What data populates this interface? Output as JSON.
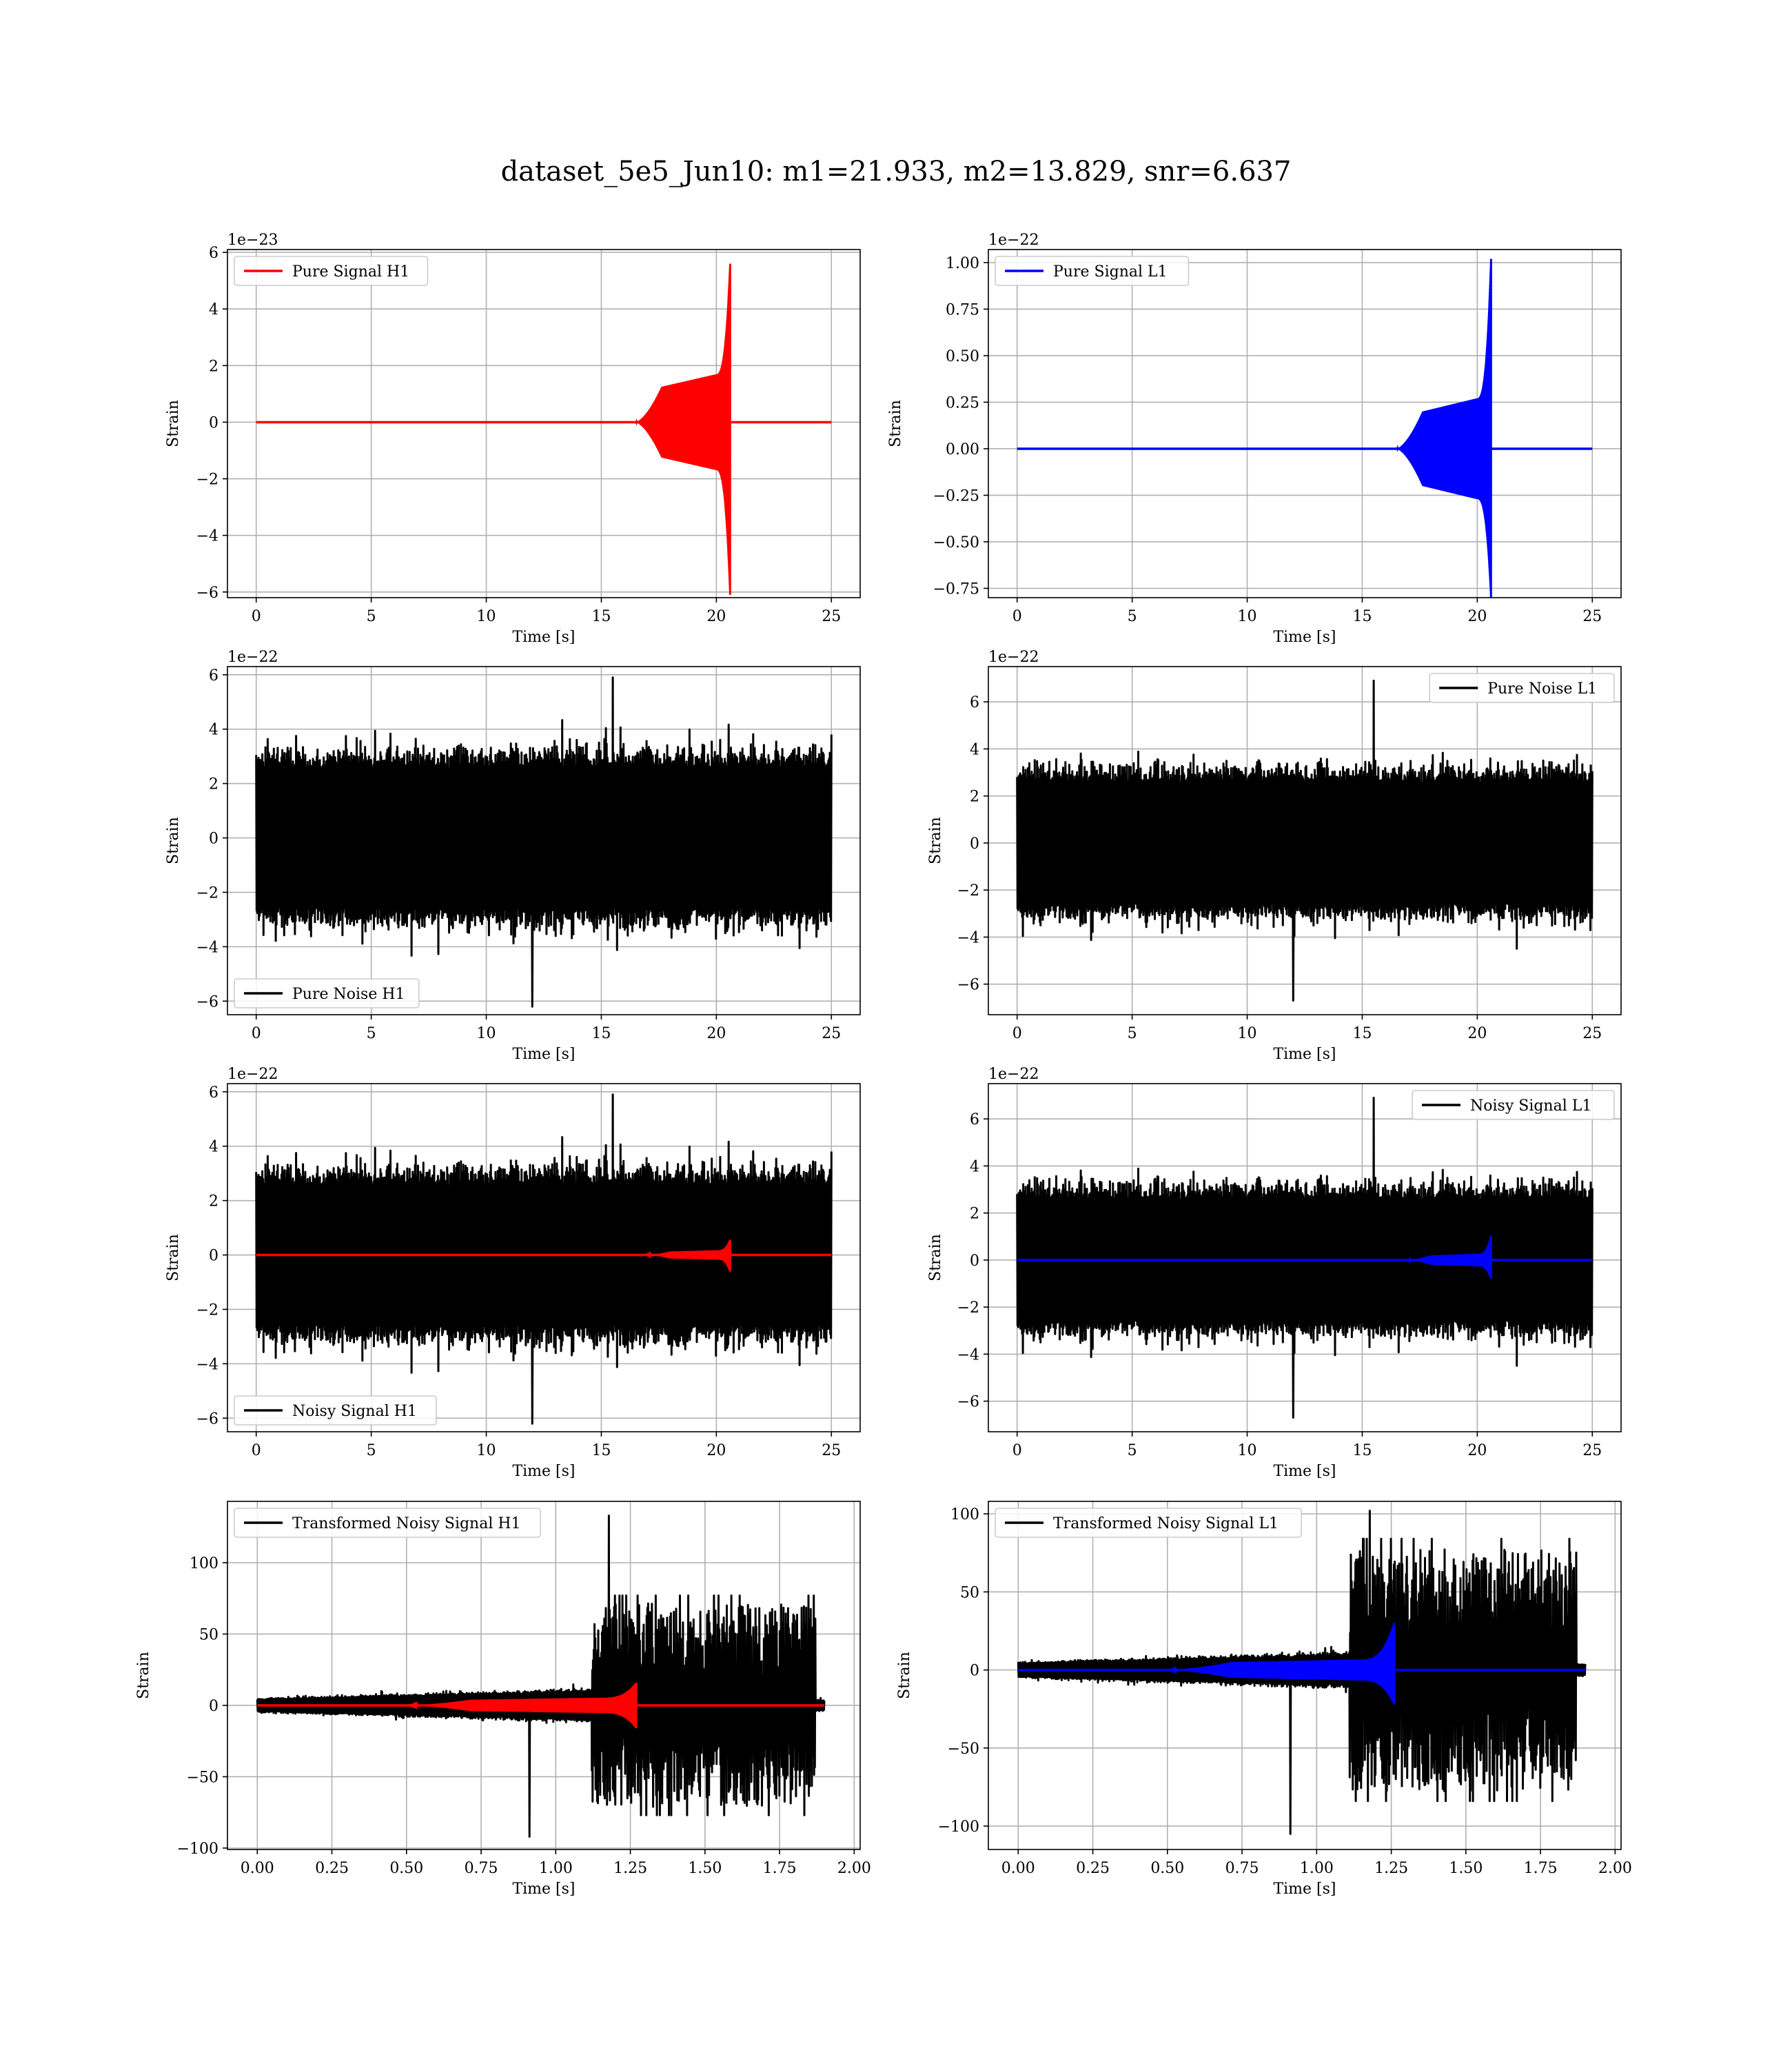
{
  "figure_title": "dataset_5e5_Jun10: m1=21.933, m2=13.829, snr=6.637",
  "chart_data": [
    {
      "id": "pure-signal-h1",
      "type": "line",
      "title": "",
      "xlabel": "Time [s]",
      "ylabel": "Strain",
      "offset_text": "1e−23",
      "xlim": [
        -1.25,
        26.25
      ],
      "ylim": [
        -6.2,
        6.1
      ],
      "xticks": [
        0,
        5,
        10,
        15,
        20,
        25
      ],
      "xtick_labels": [
        "0",
        "5",
        "10",
        "15",
        "20",
        "25"
      ],
      "yticks": [
        -6,
        -4,
        -2,
        0,
        2,
        4,
        6
      ],
      "ytick_labels": [
        "−6",
        "−4",
        "−2",
        "0",
        "2",
        "4",
        "6"
      ],
      "grid": true,
      "legend": "upper left",
      "series": [
        {
          "name": "Pure Signal H1",
          "color": "#ff0000",
          "kind": "chirp",
          "onset": 16.5,
          "merger": 20.6,
          "end": 25,
          "plateau": 1.25,
          "peak_up": 5.6,
          "peak_down": -6.1
        }
      ]
    },
    {
      "id": "pure-signal-l1",
      "type": "line",
      "title": "",
      "xlabel": "Time [s]",
      "ylabel": "Strain",
      "offset_text": "1e−22",
      "xlim": [
        -1.25,
        26.25
      ],
      "ylim": [
        -0.8,
        1.07
      ],
      "xticks": [
        0,
        5,
        10,
        15,
        20,
        25
      ],
      "xtick_labels": [
        "0",
        "5",
        "10",
        "15",
        "20",
        "25"
      ],
      "yticks": [
        -0.75,
        -0.5,
        -0.25,
        0,
        0.25,
        0.5,
        0.75,
        1.0
      ],
      "ytick_labels": [
        "−0.75",
        "−0.50",
        "−0.25",
        "0.00",
        "0.25",
        "0.50",
        "0.75",
        "1.00"
      ],
      "grid": true,
      "legend": "upper left",
      "series": [
        {
          "name": "Pure Signal L1",
          "color": "#0000ff",
          "kind": "chirp",
          "onset": 16.5,
          "merger": 20.6,
          "end": 25,
          "plateau": 0.2,
          "peak_up": 1.02,
          "peak_down": -0.8
        }
      ]
    },
    {
      "id": "pure-noise-h1",
      "type": "line",
      "title": "",
      "xlabel": "Time [s]",
      "ylabel": "Strain",
      "offset_text": "1e−22",
      "xlim": [
        -1.25,
        26.25
      ],
      "ylim": [
        -6.5,
        6.3
      ],
      "xticks": [
        0,
        5,
        10,
        15,
        20,
        25
      ],
      "xtick_labels": [
        "0",
        "5",
        "10",
        "15",
        "20",
        "25"
      ],
      "yticks": [
        -6,
        -4,
        -2,
        0,
        2,
        4,
        6
      ],
      "ytick_labels": [
        "−6",
        "−4",
        "−2",
        "0",
        "2",
        "4",
        "6"
      ],
      "grid": true,
      "legend": "lower left",
      "series": [
        {
          "name": "Pure Noise H1",
          "color": "#000000",
          "kind": "noise",
          "x_end": 25,
          "core": 3.4,
          "spike_max": 5.9,
          "spike_min": -6.2,
          "seed": 11
        }
      ]
    },
    {
      "id": "pure-noise-l1",
      "type": "line",
      "title": "",
      "xlabel": "Time [s]",
      "ylabel": "Strain",
      "offset_text": "1e−22",
      "xlim": [
        -1.25,
        26.25
      ],
      "ylim": [
        -7.3,
        7.5
      ],
      "xticks": [
        0,
        5,
        10,
        15,
        20,
        25
      ],
      "xtick_labels": [
        "0",
        "5",
        "10",
        "15",
        "20",
        "25"
      ],
      "yticks": [
        -6,
        -4,
        -2,
        0,
        2,
        4,
        6
      ],
      "ytick_labels": [
        "−6",
        "−4",
        "−2",
        "0",
        "2",
        "4",
        "6"
      ],
      "grid": true,
      "legend": "upper right",
      "series": [
        {
          "name": "Pure Noise L1",
          "color": "#000000",
          "kind": "noise",
          "x_end": 25,
          "core": 3.4,
          "spike_max": 6.9,
          "spike_min": -6.7,
          "seed": 23
        }
      ]
    },
    {
      "id": "noisy-signal-h1",
      "type": "line",
      "title": "",
      "xlabel": "Time [s]",
      "ylabel": "Strain",
      "offset_text": "1e−22",
      "xlim": [
        -1.25,
        26.25
      ],
      "ylim": [
        -6.5,
        6.3
      ],
      "xticks": [
        0,
        5,
        10,
        15,
        20,
        25
      ],
      "xtick_labels": [
        "0",
        "5",
        "10",
        "15",
        "20",
        "25"
      ],
      "yticks": [
        -6,
        -4,
        -2,
        0,
        2,
        4,
        6
      ],
      "ytick_labels": [
        "−6",
        "−4",
        "−2",
        "0",
        "2",
        "4",
        "6"
      ],
      "grid": true,
      "legend": "lower left",
      "series": [
        {
          "name": "Noisy Signal H1",
          "color": "#000000",
          "kind": "noise",
          "x_end": 25,
          "core": 3.4,
          "spike_max": 5.9,
          "spike_min": -6.2,
          "seed": 11
        },
        {
          "name": "",
          "color": "#ff0000",
          "kind": "chirp",
          "onset": 17.0,
          "merger": 20.6,
          "end": 25,
          "plateau": 0.13,
          "peak_up": 0.56,
          "peak_down": -0.61
        }
      ]
    },
    {
      "id": "noisy-signal-l1",
      "type": "line",
      "title": "",
      "xlabel": "Time [s]",
      "ylabel": "Strain",
      "offset_text": "1e−22",
      "xlim": [
        -1.25,
        26.25
      ],
      "ylim": [
        -7.3,
        7.5
      ],
      "xticks": [
        0,
        5,
        10,
        15,
        20,
        25
      ],
      "xtick_labels": [
        "0",
        "5",
        "10",
        "15",
        "20",
        "25"
      ],
      "yticks": [
        -6,
        -4,
        -2,
        0,
        2,
        4,
        6
      ],
      "ytick_labels": [
        "−6",
        "−4",
        "−2",
        "0",
        "2",
        "4",
        "6"
      ],
      "grid": true,
      "legend": "upper right",
      "series": [
        {
          "name": "Noisy Signal L1",
          "color": "#000000",
          "kind": "noise",
          "x_end": 25,
          "core": 3.4,
          "spike_max": 6.9,
          "spike_min": -6.7,
          "seed": 23
        },
        {
          "name": "",
          "color": "#0000ff",
          "kind": "chirp",
          "onset": 17.0,
          "merger": 20.6,
          "end": 25,
          "plateau": 0.2,
          "peak_up": 1.02,
          "peak_down": -0.8
        }
      ]
    },
    {
      "id": "transformed-noisy-signal-h1",
      "type": "line",
      "title": "",
      "xlabel": "Time [s]",
      "ylabel": "Strain",
      "offset_text": "",
      "xlim": [
        -0.1,
        2.02
      ],
      "ylim": [
        -101,
        143
      ],
      "xticks": [
        0,
        0.25,
        0.5,
        0.75,
        1.0,
        1.25,
        1.5,
        1.75,
        2.0
      ],
      "xtick_labels": [
        "0.00",
        "0.25",
        "0.50",
        "0.75",
        "1.00",
        "1.25",
        "1.50",
        "1.75",
        "2.00"
      ],
      "yticks": [
        -100,
        -50,
        0,
        50,
        100
      ],
      "ytick_labels": [
        "−100",
        "−50",
        "0",
        "50",
        "100"
      ],
      "grid": true,
      "legend": "upper left",
      "series": [
        {
          "name": "Transformed Noisy Signal H1",
          "color": "#000000",
          "kind": "tnoise",
          "x_end": 1.9,
          "step": 1.12,
          "stop": 1.87,
          "low": 5,
          "high": 55,
          "spike_max": 133,
          "spike_min": -92,
          "seed": 5
        },
        {
          "name": "",
          "color": "#ff0000",
          "kind": "chirp",
          "onset": 0.5,
          "merger": 1.27,
          "end": 1.9,
          "plateau": 4,
          "peak_up": 16,
          "peak_down": -16
        }
      ]
    },
    {
      "id": "transformed-noisy-signal-l1",
      "type": "line",
      "title": "",
      "xlabel": "Time [s]",
      "ylabel": "Strain",
      "offset_text": "",
      "xlim": [
        -0.1,
        2.02
      ],
      "ylim": [
        -115,
        108
      ],
      "xticks": [
        0,
        0.25,
        0.5,
        0.75,
        1.0,
        1.25,
        1.5,
        1.75,
        2.0
      ],
      "xtick_labels": [
        "0.00",
        "0.25",
        "0.50",
        "0.75",
        "1.00",
        "1.25",
        "1.50",
        "1.75",
        "2.00"
      ],
      "yticks": [
        -100,
        -50,
        0,
        50,
        100
      ],
      "ytick_labels": [
        "−100",
        "−50",
        "0",
        "50",
        "100"
      ],
      "grid": true,
      "legend": "upper left",
      "series": [
        {
          "name": "Transformed Noisy Signal L1",
          "color": "#000000",
          "kind": "tnoise",
          "x_end": 1.9,
          "step": 1.11,
          "stop": 1.87,
          "low": 5,
          "high": 60,
          "spike_max": 102,
          "spike_min": -105,
          "seed": 9
        },
        {
          "name": "",
          "color": "#0000ff",
          "kind": "chirp",
          "onset": 0.5,
          "merger": 1.26,
          "end": 1.9,
          "plateau": 5,
          "peak_up": 30,
          "peak_down": -22
        }
      ]
    }
  ]
}
